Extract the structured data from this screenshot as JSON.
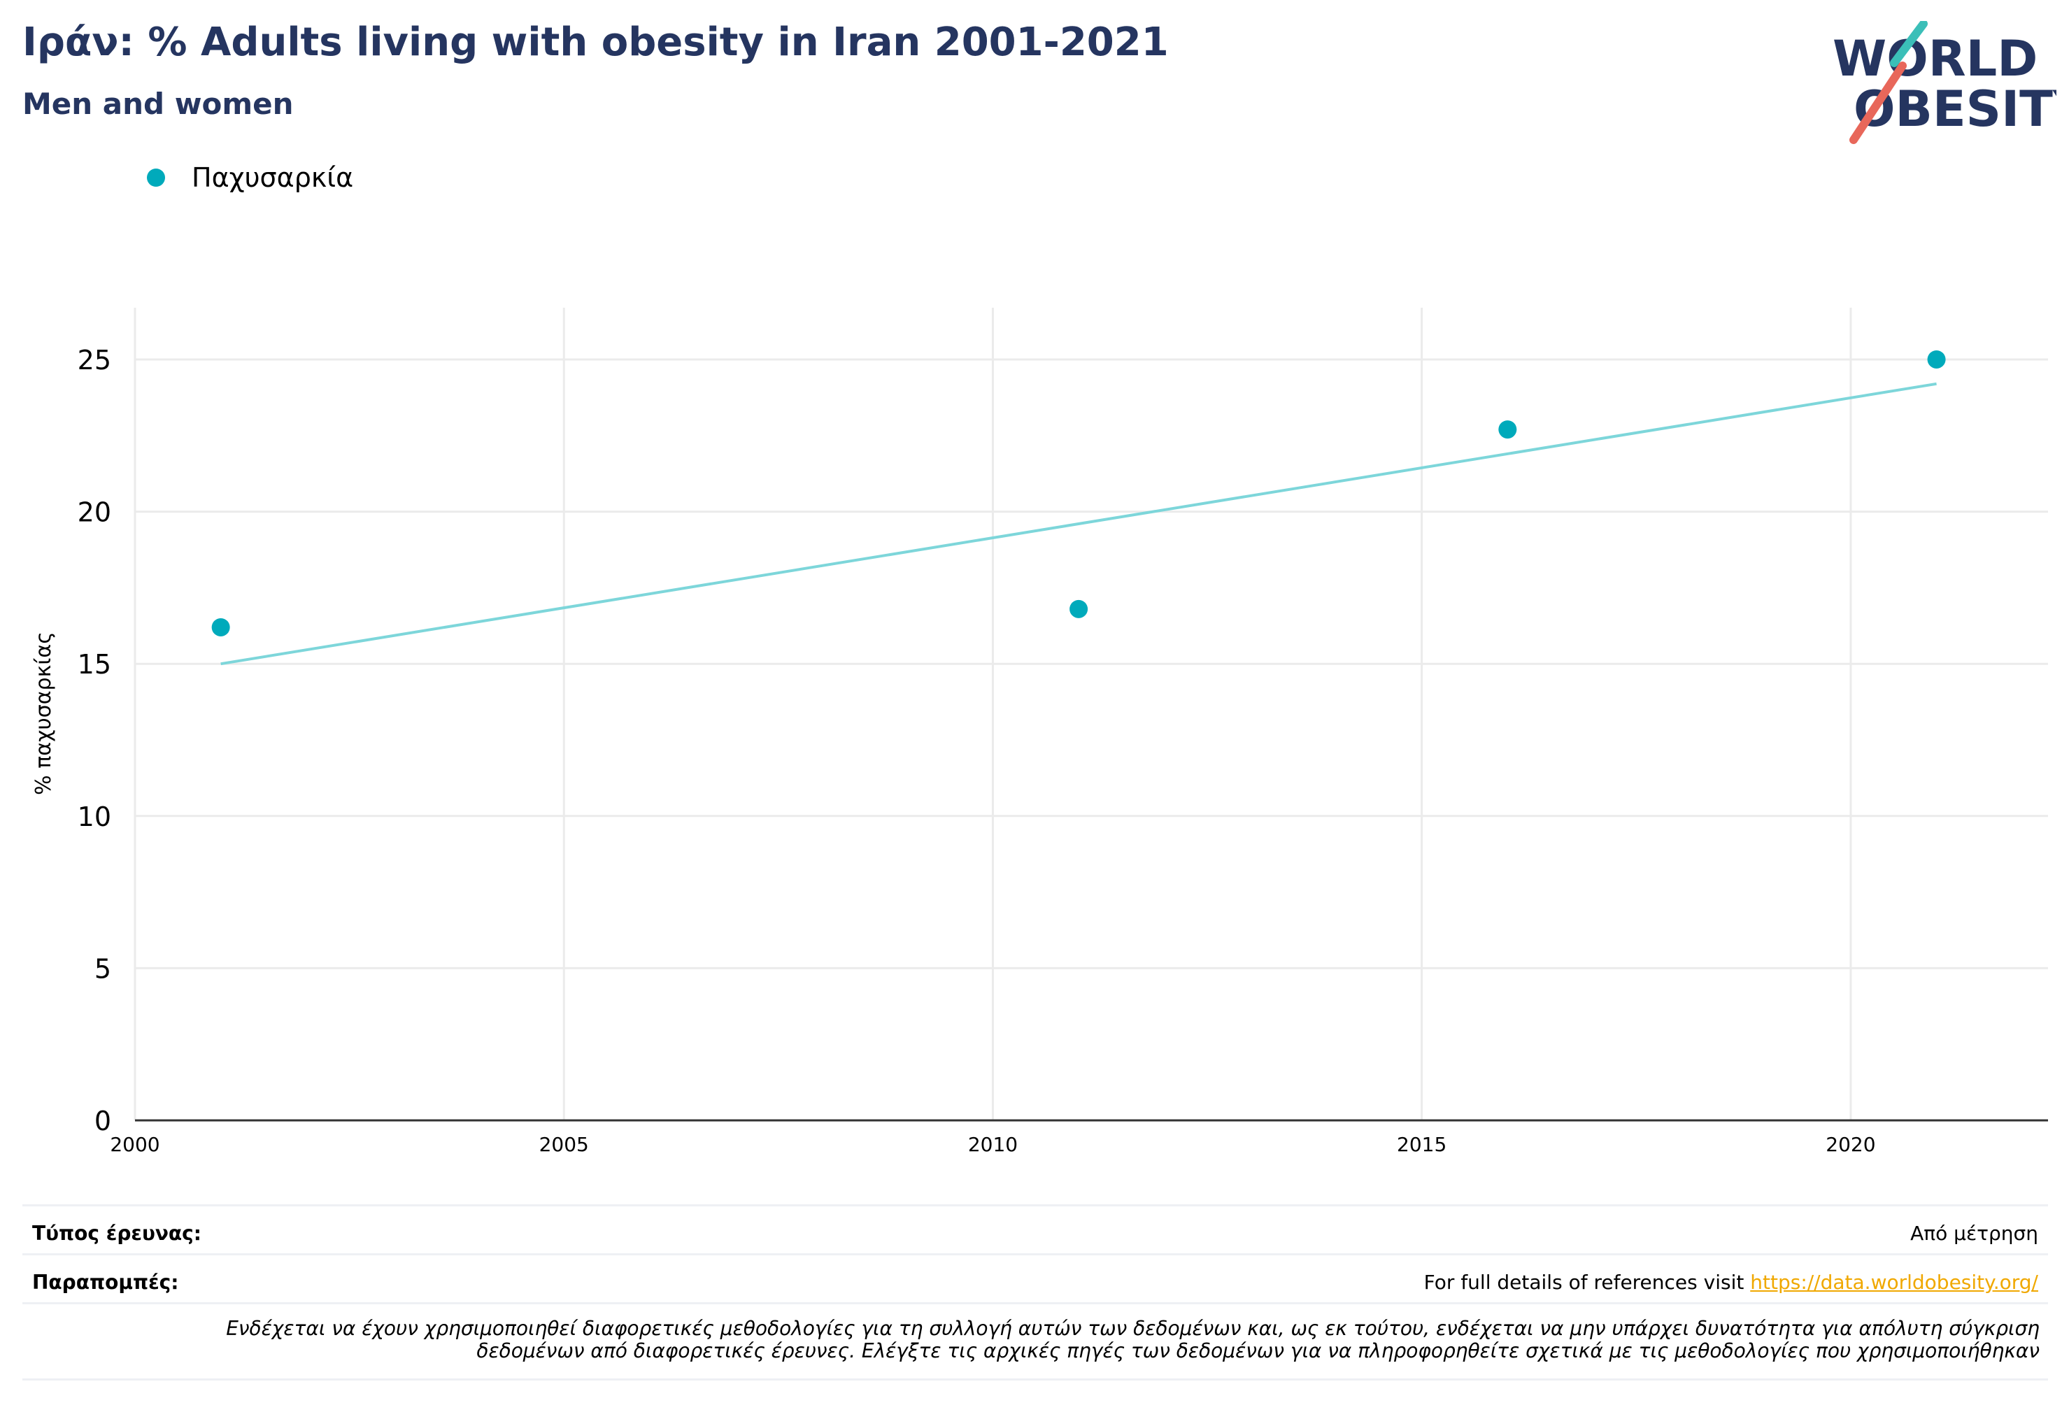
{
  "header": {
    "title": "Ιράν: % Adults living with obesity in Iran 2001-2021",
    "subtitle": "Men and women"
  },
  "logo": {
    "line1": "WORLD",
    "line2": "OBESITY",
    "colors": {
      "text": "#253560",
      "slash_teal": "#3bbfb8",
      "slash_red": "#e8675a"
    }
  },
  "legend": {
    "label": "Παχυσαρκία"
  },
  "colors": {
    "points": "#00aabb",
    "trend": "#7dd6da",
    "grid": "#ebebeb",
    "axis": "#333333"
  },
  "chart_data": {
    "type": "scatter",
    "ylabel": "% παχυσαρκίας",
    "xlabel": "",
    "xlim": [
      2000,
      2022.3
    ],
    "ylim": [
      0,
      26.7
    ],
    "x_ticks": [
      2000,
      2005,
      2010,
      2015,
      2020
    ],
    "y_ticks": [
      0,
      5,
      10,
      15,
      20,
      25
    ],
    "grid": true,
    "legend_position": "top-left",
    "series": [
      {
        "name": "Παχυσαρκία",
        "points": [
          {
            "x": 2001,
            "y": 16.2
          },
          {
            "x": 2011,
            "y": 16.8
          },
          {
            "x": 2016,
            "y": 22.7
          },
          {
            "x": 2021,
            "y": 25.0
          }
        ]
      }
    ],
    "trendline": {
      "x": [
        2001,
        2021
      ],
      "y": [
        15.0,
        24.2
      ]
    }
  },
  "footer": {
    "survey_type_label": "Τύπος έρευνας:",
    "survey_type_value": "Από μέτρηση",
    "references_label": "Παραπομπές:",
    "references_text": "For full details of references visit ",
    "references_link": "https://data.worldobesity.org/",
    "disclaimer_line1": "Ενδέχεται να έχουν χρησιμοποιηθεί διαφορετικές μεθοδολογίες για τη συλλογή αυτών των δεδομένων και, ως εκ τούτου, ενδέχεται να μην υπάρχει δυνατότητα για απόλυτη σύγκριση",
    "disclaimer_line2": "δεδομένων από διαφορετικές έρευνες. Ελέγξτε τις αρχικές πηγές των δεδομένων για να πληροφορηθείτε σχετικά με τις μεθοδολογίες που χρησιμοποιήθηκαν"
  }
}
